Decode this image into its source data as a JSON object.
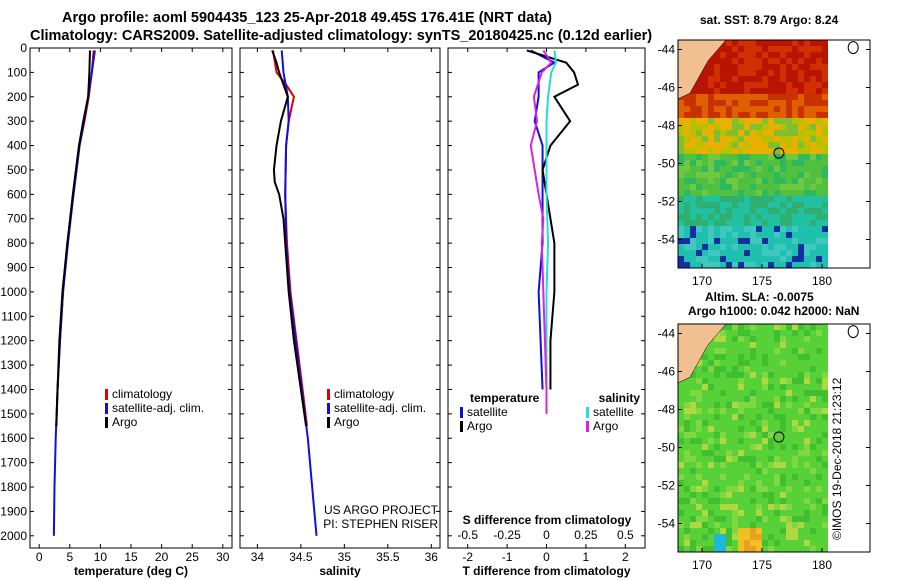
{
  "title_line1": "Argo profile: aoml 5904435_123 25-Apr-2018 49.45S 176.41E (NRT data)",
  "title_line2": "Climatology: CARS2009. Satellite-adjusted climatology: synTS_20180425.nc (0.12d earlier)",
  "map1_title": "sat. SST: 8.79 Argo: 8.24",
  "map2_title_line1": "Altim. SLA: -0.0075",
  "map2_title_line2": "Argo h1000: 0.042 h2000: NaN",
  "watermark": "©IMOS 19-Dec-2018 21:23:12",
  "credit_line1": "US ARGO PROJECT",
  "credit_line2": "PI: STEPHEN RISER",
  "colors": {
    "climatology": "#dd0000",
    "satellite": "#1010dd",
    "argo": "#000000",
    "sat_salinity": "#22dddd",
    "argo_salinity": "#dd22dd"
  },
  "chart_data": [
    {
      "type": "line",
      "name": "temperature profile",
      "xlabel": "temperature (deg C)",
      "ylabel": "",
      "xlim": [
        -1.5,
        31.5
      ],
      "ylim": [
        2050,
        0
      ],
      "xticks": [
        "0",
        "5",
        "10",
        "15",
        "20",
        "25",
        "30"
      ],
      "yticks": [
        "0",
        "100",
        "200",
        "300",
        "400",
        "500",
        "600",
        "700",
        "800",
        "900",
        "1000",
        "1100",
        "1200",
        "1300",
        "1400",
        "1500",
        "1600",
        "1700",
        "1800",
        "1900",
        "2000"
      ],
      "legend": [
        "climatology",
        "satellite-adj. clim.",
        "Argo"
      ],
      "series": [
        {
          "name": "climatology",
          "depth": [
            10,
            100,
            200,
            300,
            400,
            600,
            800,
            1000,
            1200,
            1400,
            1550
          ],
          "values": [
            8.9,
            8.6,
            8.1,
            7.4,
            6.6,
            5.6,
            4.6,
            3.9,
            3.4,
            3.0,
            2.8
          ]
        },
        {
          "name": "satellite-adj. clim.",
          "depth": [
            10,
            100,
            200,
            300,
            400,
            600,
            800,
            1000,
            1200,
            1400,
            1600,
            1800,
            2000
          ],
          "values": [
            9.1,
            8.6,
            8.0,
            7.3,
            6.6,
            5.6,
            4.7,
            3.9,
            3.4,
            3.0,
            2.7,
            2.5,
            2.4
          ]
        },
        {
          "name": "Argo",
          "depth": [
            10,
            100,
            200,
            300,
            400,
            600,
            800,
            1000,
            1200,
            1400,
            1550
          ],
          "values": [
            8.3,
            8.2,
            8.0,
            7.2,
            6.5,
            5.5,
            4.6,
            3.8,
            3.3,
            3.0,
            2.8
          ]
        }
      ]
    },
    {
      "type": "line",
      "name": "salinity profile",
      "xlabel": "salinity",
      "xlim": [
        33.8,
        36.1
      ],
      "ylim": [
        2050,
        0
      ],
      "xticks": [
        "34",
        "34.5",
        "35",
        "35.5",
        "36"
      ],
      "legend": [
        "climatology",
        "satellite-adj. clim.",
        "Argo"
      ],
      "series": [
        {
          "name": "climatology",
          "depth": [
            10,
            100,
            150,
            200,
            300,
            400,
            600,
            800,
            1000,
            1200,
            1400,
            1550
          ],
          "values": [
            34.18,
            34.22,
            34.33,
            34.42,
            34.36,
            34.33,
            34.32,
            34.34,
            34.38,
            34.45,
            34.52,
            34.57
          ]
        },
        {
          "name": "satellite-adj. clim.",
          "depth": [
            10,
            100,
            200,
            300,
            400,
            600,
            800,
            1000,
            1200,
            1400,
            1600,
            1800,
            2000
          ],
          "values": [
            34.28,
            34.3,
            34.35,
            34.36,
            34.33,
            34.32,
            34.33,
            34.37,
            34.44,
            34.51,
            34.58,
            34.63,
            34.68
          ]
        },
        {
          "name": "Argo",
          "depth": [
            10,
            60,
            100,
            200,
            300,
            400,
            500,
            550,
            600,
            700,
            800,
            1000,
            1200,
            1400,
            1550
          ],
          "values": [
            34.17,
            34.22,
            34.25,
            34.35,
            34.27,
            34.22,
            34.19,
            34.2,
            34.25,
            34.3,
            34.32,
            34.36,
            34.42,
            34.5,
            34.56
          ]
        }
      ]
    },
    {
      "type": "line",
      "name": "difference from climatology",
      "xlabel": "T difference from climatology",
      "xlabel_top": "S difference from climatology",
      "xlim": [
        -2.5,
        2.5
      ],
      "ylim": [
        2050,
        0
      ],
      "xticks": [
        "-2",
        "-1",
        "0",
        "1",
        "2"
      ],
      "xticks_top": [
        "-0.5",
        "-0.25",
        "0",
        "0.25",
        "0.5"
      ],
      "legend_left_title": "temperature",
      "legend_right_title": "salinity",
      "legend_left": [
        "satellite",
        "Argo"
      ],
      "legend_right": [
        "satellite",
        "Argo"
      ],
      "series": [
        {
          "name": "T satellite",
          "depth": [
            10,
            60,
            100,
            200,
            300,
            400,
            600,
            800,
            1000,
            1200,
            1400
          ],
          "values": [
            -0.4,
            0.2,
            -0.2,
            -0.2,
            -0.3,
            -0.1,
            -0.1,
            -0.1,
            -0.2,
            -0.15,
            -0.1
          ]
        },
        {
          "name": "T Argo",
          "depth": [
            10,
            60,
            100,
            150,
            200,
            300,
            400,
            500,
            600,
            800,
            1000,
            1200,
            1400
          ],
          "values": [
            -0.5,
            0.5,
            0.7,
            0.8,
            0.2,
            0.6,
            0.1,
            -0.1,
            0.0,
            0.2,
            0.2,
            0.1,
            0.1
          ]
        },
        {
          "name": "S satellite",
          "depth": [
            10,
            60,
            100,
            200,
            300,
            400,
            600,
            800,
            1000,
            1200,
            1400
          ],
          "values": [
            0.05,
            0.06,
            0.03,
            0.01,
            0.0,
            0.0,
            0.0,
            0.01,
            0.0,
            0.0,
            0.0
          ]
        },
        {
          "name": "S Argo",
          "depth": [
            10,
            60,
            100,
            200,
            300,
            400,
            600,
            700,
            800,
            1000,
            1200,
            1400,
            1500
          ],
          "values": [
            -0.02,
            0.03,
            -0.03,
            -0.08,
            -0.06,
            -0.1,
            -0.05,
            -0.02,
            -0.03,
            -0.02,
            -0.01,
            0.0,
            0.0
          ]
        }
      ]
    },
    {
      "type": "heatmap",
      "name": "SST map",
      "title": "sat. SST: 8.79 Argo: 8.24",
      "xlim": [
        168,
        184
      ],
      "ylim": [
        -55.5,
        -43.5
      ],
      "xticks": [
        "170",
        "175",
        "180"
      ],
      "yticks": [
        "-44",
        "-46",
        "-48",
        "-50",
        "-52",
        "-54"
      ]
    },
    {
      "type": "heatmap",
      "name": "SLA map",
      "title": "Altim. SLA: -0.0075",
      "xlim": [
        168,
        184
      ],
      "ylim": [
        -55.5,
        -43.5
      ],
      "xticks": [
        "170",
        "175",
        "180"
      ],
      "yticks": [
        "-44",
        "-46",
        "-48",
        "-50",
        "-52",
        "-54"
      ]
    }
  ]
}
